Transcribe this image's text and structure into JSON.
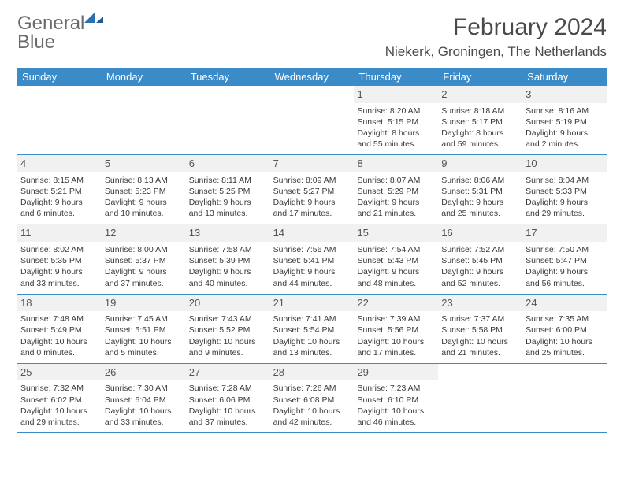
{
  "logo": {
    "text_gray": "General",
    "text_blue": "Blue"
  },
  "title": "February 2024",
  "location": "Niekerk, Groningen, The Netherlands",
  "colors": {
    "header_bg": "#3b8bc9",
    "header_text": "#ffffff",
    "daynum_bg": "#f1f1f1",
    "border": "#3b8bc9",
    "logo_gray": "#6a6a6a",
    "logo_blue": "#2a6fb5"
  },
  "weekdays": [
    "Sunday",
    "Monday",
    "Tuesday",
    "Wednesday",
    "Thursday",
    "Friday",
    "Saturday"
  ],
  "weeks": [
    [
      null,
      null,
      null,
      null,
      {
        "n": "1",
        "sr": "8:20 AM",
        "ss": "5:15 PM",
        "dl": "8 hours and 55 minutes."
      },
      {
        "n": "2",
        "sr": "8:18 AM",
        "ss": "5:17 PM",
        "dl": "8 hours and 59 minutes."
      },
      {
        "n": "3",
        "sr": "8:16 AM",
        "ss": "5:19 PM",
        "dl": "9 hours and 2 minutes."
      }
    ],
    [
      {
        "n": "4",
        "sr": "8:15 AM",
        "ss": "5:21 PM",
        "dl": "9 hours and 6 minutes."
      },
      {
        "n": "5",
        "sr": "8:13 AM",
        "ss": "5:23 PM",
        "dl": "9 hours and 10 minutes."
      },
      {
        "n": "6",
        "sr": "8:11 AM",
        "ss": "5:25 PM",
        "dl": "9 hours and 13 minutes."
      },
      {
        "n": "7",
        "sr": "8:09 AM",
        "ss": "5:27 PM",
        "dl": "9 hours and 17 minutes."
      },
      {
        "n": "8",
        "sr": "8:07 AM",
        "ss": "5:29 PM",
        "dl": "9 hours and 21 minutes."
      },
      {
        "n": "9",
        "sr": "8:06 AM",
        "ss": "5:31 PM",
        "dl": "9 hours and 25 minutes."
      },
      {
        "n": "10",
        "sr": "8:04 AM",
        "ss": "5:33 PM",
        "dl": "9 hours and 29 minutes."
      }
    ],
    [
      {
        "n": "11",
        "sr": "8:02 AM",
        "ss": "5:35 PM",
        "dl": "9 hours and 33 minutes."
      },
      {
        "n": "12",
        "sr": "8:00 AM",
        "ss": "5:37 PM",
        "dl": "9 hours and 37 minutes."
      },
      {
        "n": "13",
        "sr": "7:58 AM",
        "ss": "5:39 PM",
        "dl": "9 hours and 40 minutes."
      },
      {
        "n": "14",
        "sr": "7:56 AM",
        "ss": "5:41 PM",
        "dl": "9 hours and 44 minutes."
      },
      {
        "n": "15",
        "sr": "7:54 AM",
        "ss": "5:43 PM",
        "dl": "9 hours and 48 minutes."
      },
      {
        "n": "16",
        "sr": "7:52 AM",
        "ss": "5:45 PM",
        "dl": "9 hours and 52 minutes."
      },
      {
        "n": "17",
        "sr": "7:50 AM",
        "ss": "5:47 PM",
        "dl": "9 hours and 56 minutes."
      }
    ],
    [
      {
        "n": "18",
        "sr": "7:48 AM",
        "ss": "5:49 PM",
        "dl": "10 hours and 0 minutes."
      },
      {
        "n": "19",
        "sr": "7:45 AM",
        "ss": "5:51 PM",
        "dl": "10 hours and 5 minutes."
      },
      {
        "n": "20",
        "sr": "7:43 AM",
        "ss": "5:52 PM",
        "dl": "10 hours and 9 minutes."
      },
      {
        "n": "21",
        "sr": "7:41 AM",
        "ss": "5:54 PM",
        "dl": "10 hours and 13 minutes."
      },
      {
        "n": "22",
        "sr": "7:39 AM",
        "ss": "5:56 PM",
        "dl": "10 hours and 17 minutes."
      },
      {
        "n": "23",
        "sr": "7:37 AM",
        "ss": "5:58 PM",
        "dl": "10 hours and 21 minutes."
      },
      {
        "n": "24",
        "sr": "7:35 AM",
        "ss": "6:00 PM",
        "dl": "10 hours and 25 minutes."
      }
    ],
    [
      {
        "n": "25",
        "sr": "7:32 AM",
        "ss": "6:02 PM",
        "dl": "10 hours and 29 minutes."
      },
      {
        "n": "26",
        "sr": "7:30 AM",
        "ss": "6:04 PM",
        "dl": "10 hours and 33 minutes."
      },
      {
        "n": "27",
        "sr": "7:28 AM",
        "ss": "6:06 PM",
        "dl": "10 hours and 37 minutes."
      },
      {
        "n": "28",
        "sr": "7:26 AM",
        "ss": "6:08 PM",
        "dl": "10 hours and 42 minutes."
      },
      {
        "n": "29",
        "sr": "7:23 AM",
        "ss": "6:10 PM",
        "dl": "10 hours and 46 minutes."
      },
      null,
      null
    ]
  ],
  "labels": {
    "sunrise": "Sunrise:",
    "sunset": "Sunset:",
    "daylight": "Daylight:"
  }
}
